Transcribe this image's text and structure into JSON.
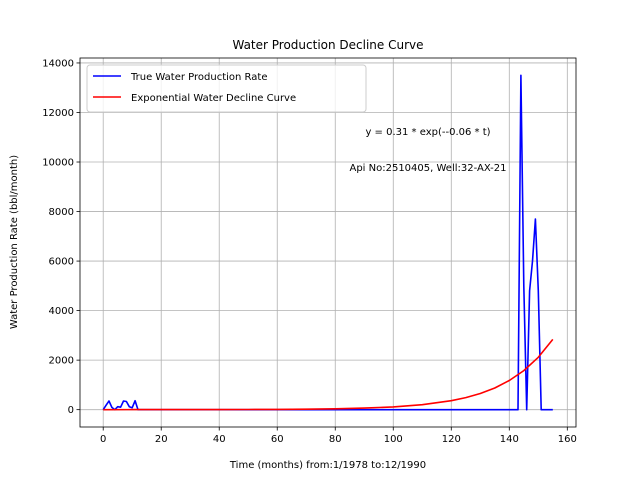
{
  "chart_data": {
    "type": "line",
    "title": "Water Production Decline Curve",
    "xlabel": "Time (months) from:1/1978 to:12/1990",
    "ylabel": "Water Production Rate (bbl/month)",
    "xlim": [
      -8,
      163
    ],
    "ylim": [
      -700,
      14200
    ],
    "xticks": [
      0,
      20,
      40,
      60,
      80,
      100,
      120,
      140,
      160
    ],
    "yticks": [
      0,
      2000,
      4000,
      6000,
      8000,
      10000,
      12000,
      14000
    ],
    "grid": true,
    "legend": {
      "placement": "top-left"
    },
    "annotations": [
      {
        "text": "y = 0.31 * exp(--0.06 * t)",
        "x": 118,
        "y": 10900
      },
      {
        "text": "Api No:2510405, Well:32-AX-21",
        "x": 116,
        "y": 9600
      }
    ],
    "series": [
      {
        "name": "True Water Production Rate",
        "color": "#0000ff",
        "x": [
          0,
          1,
          2,
          3,
          4,
          5,
          6,
          7,
          8,
          9,
          10,
          11,
          12,
          20,
          40,
          60,
          80,
          100,
          120,
          140,
          143,
          144,
          145,
          146,
          147,
          148,
          149,
          150,
          151,
          152,
          155
        ],
        "y": [
          0,
          180,
          350,
          90,
          0,
          120,
          100,
          350,
          330,
          120,
          80,
          360,
          0,
          0,
          0,
          0,
          0,
          0,
          0,
          0,
          0,
          13500,
          5000,
          0,
          4800,
          6000,
          7700,
          4800,
          0,
          0,
          0
        ]
      },
      {
        "name": "Exponential Water Decline Curve",
        "color": "#ff0000",
        "function": "0.31 * exp(0.0589 * t)",
        "x": [
          0,
          10,
          20,
          30,
          40,
          50,
          60,
          70,
          80,
          90,
          100,
          110,
          120,
          125,
          130,
          135,
          140,
          145,
          150,
          155
        ],
        "y": [
          0.3,
          0.6,
          1,
          2,
          3,
          6,
          11,
          19,
          34,
          62,
          112,
          202,
          363,
          487,
          654,
          876,
          1176,
          1577,
          2116,
          2838
        ]
      }
    ]
  }
}
